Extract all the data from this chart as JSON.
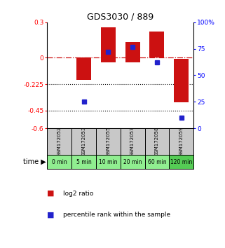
{
  "title": "GDS3030 / 889",
  "samples": [
    "GSM172052",
    "GSM172053",
    "GSM172055",
    "GSM172057",
    "GSM172058",
    "GSM172059"
  ],
  "time_labels": [
    "0 min",
    "5 min",
    "10 min",
    "20 min",
    "60 min",
    "120 min"
  ],
  "log2_ratios": [
    0.0,
    -0.19,
    0.255,
    0.13,
    0.22,
    -0.38
  ],
  "log2_bottoms": [
    0.0,
    0.0,
    -0.04,
    -0.04,
    0.0,
    -0.01
  ],
  "percentile_ranks": [
    null,
    25.0,
    72.0,
    76.5,
    62.0,
    10.0
  ],
  "ylim_left": [
    -0.6,
    0.3
  ],
  "ylim_right": [
    0,
    100
  ],
  "yticks_left": [
    0.3,
    0,
    -0.225,
    -0.45,
    -0.6
  ],
  "ytick_labels_left": [
    "0.3",
    "0",
    "-0.225",
    "-0.45",
    "-0.6"
  ],
  "yticks_right": [
    100,
    75,
    50,
    25,
    0
  ],
  "hlines_dotted": [
    -0.225,
    -0.45
  ],
  "hline_dashdot": 0.0,
  "bar_color": "#cc1111",
  "dot_color": "#2222cc",
  "green_light": "#90ee90",
  "green_darker": "#55cc55",
  "gray_label": "#c8c8c8",
  "legend_labels": [
    "log2 ratio",
    "percentile rank within the sample"
  ],
  "x_positions": [
    0,
    1,
    2,
    3,
    4,
    5
  ]
}
